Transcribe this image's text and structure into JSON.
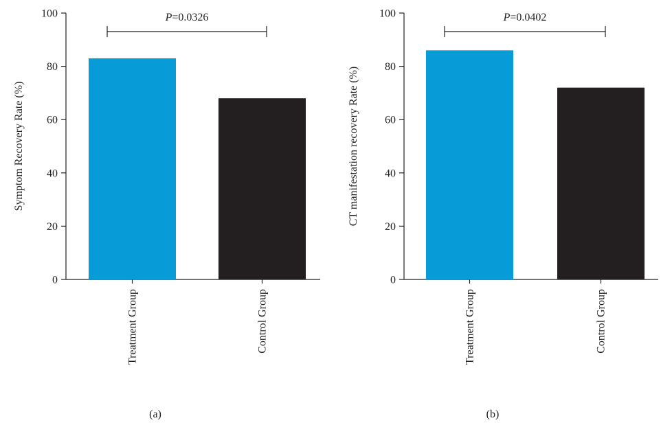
{
  "colors": {
    "treatment": "#079bd8",
    "control": "#231f20",
    "axis": "#231f20"
  },
  "chart_data": [
    {
      "type": "bar",
      "panel_label": "(a)",
      "categories": [
        "Treatment Group",
        "Control Group"
      ],
      "values": [
        83,
        68
      ],
      "ylabel": "Symptom Recovery Rate (%)",
      "xlabel": "",
      "ylim": [
        0,
        100
      ],
      "yticks": [
        "0",
        "20",
        "40",
        "60",
        "80",
        "100"
      ],
      "significance": {
        "p_italic": "P",
        "p_value": "=0.0326"
      },
      "grid": false
    },
    {
      "type": "bar",
      "panel_label": "(b)",
      "categories": [
        "Treatment Group",
        "Control Group"
      ],
      "values": [
        86,
        72
      ],
      "ylabel": "CT manifestation recovery Rate (%)",
      "xlabel": "",
      "ylim": [
        0,
        100
      ],
      "yticks": [
        "0",
        "20",
        "40",
        "60",
        "80",
        "100"
      ],
      "significance": {
        "p_italic": "P",
        "p_value": "=0.0402"
      },
      "grid": false
    }
  ]
}
